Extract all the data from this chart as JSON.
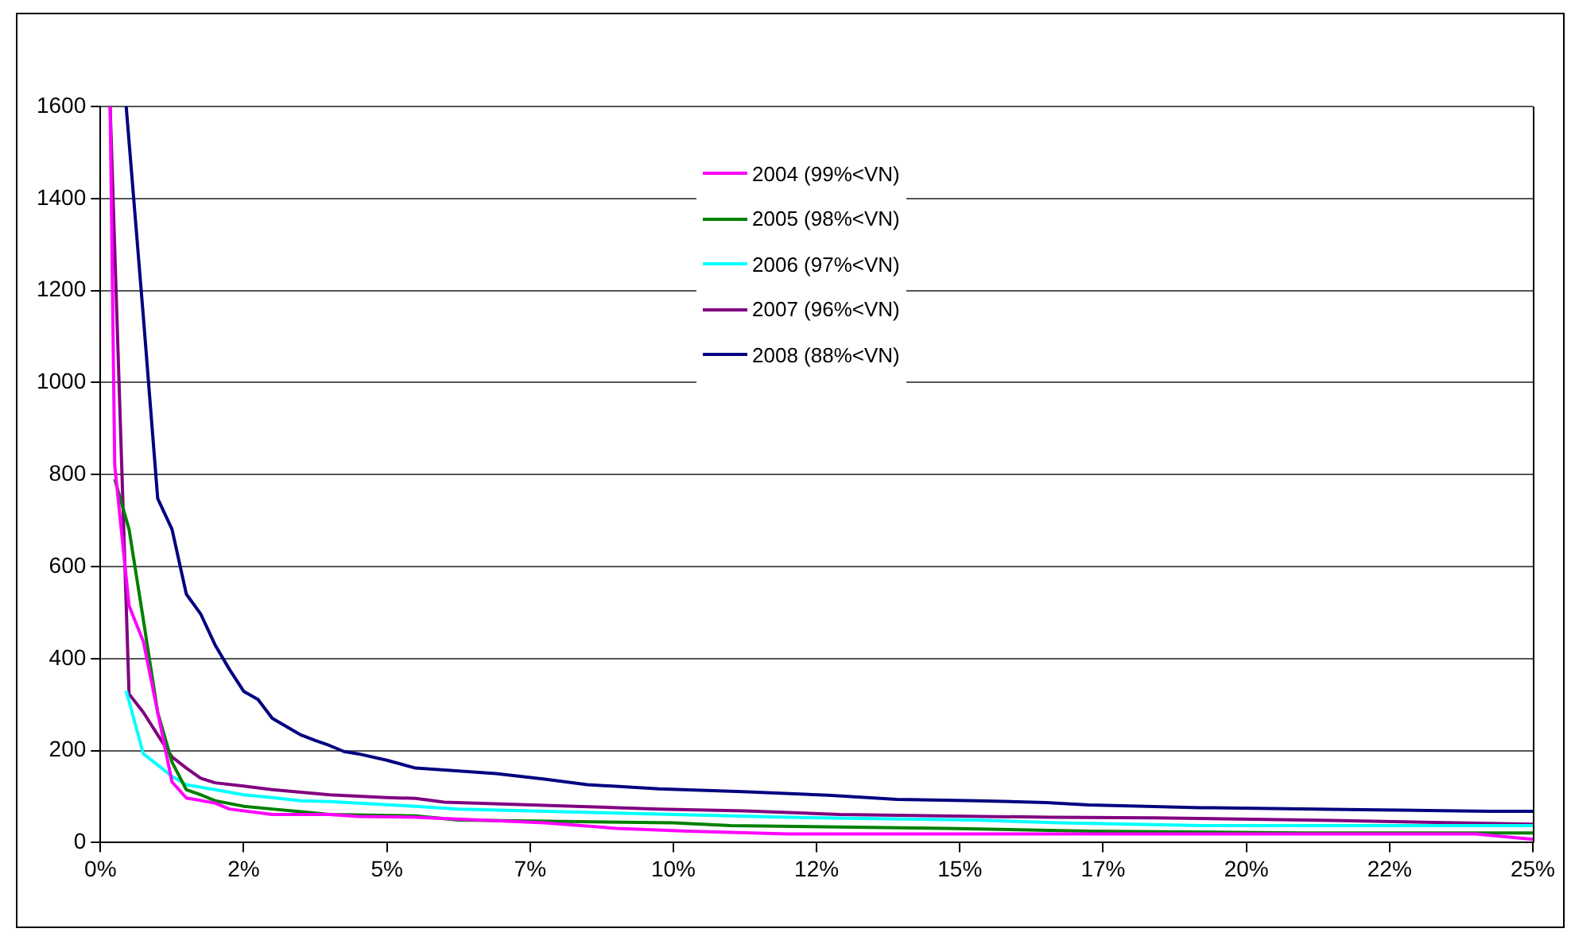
{
  "chart_data": {
    "type": "line",
    "xlim": [
      0,
      25
    ],
    "ylim": [
      0,
      1600
    ],
    "xticks": [
      {
        "value": 0,
        "label": "0%"
      },
      {
        "value": 2.5,
        "label": "2%"
      },
      {
        "value": 5,
        "label": "5%"
      },
      {
        "value": 7.5,
        "label": "7%"
      },
      {
        "value": 10,
        "label": "10%"
      },
      {
        "value": 12.5,
        "label": "12%"
      },
      {
        "value": 15,
        "label": "15%"
      },
      {
        "value": 17.5,
        "label": "17%"
      },
      {
        "value": 20,
        "label": "20%"
      },
      {
        "value": 22.5,
        "label": "22%"
      },
      {
        "value": 25,
        "label": "25%"
      }
    ],
    "yticks": [
      0,
      200,
      400,
      600,
      800,
      1000,
      1200,
      1400,
      1600
    ],
    "grid": "y",
    "legend": "top",
    "marker": "none",
    "line_style": "solid",
    "series": [
      {
        "name": "2004 (99%<VN)",
        "color": "#ff00ff",
        "x": [
          0.17,
          0.25,
          0.5,
          0.75,
          1,
          1.25,
          1.5,
          2,
          2.25,
          3,
          4,
          4.5,
          5.5,
          7.75,
          9,
          10.25,
          12,
          14.5,
          24,
          25
        ],
        "values": [
          1600,
          820,
          515,
          437,
          283,
          132,
          97,
          86,
          73,
          61,
          61,
          57,
          55,
          43,
          31,
          25,
          19,
          19,
          19,
          7
        ]
      },
      {
        "name": "2005 (98%<VN)",
        "color": "#008000",
        "x": [
          0.25,
          0.5,
          0.75,
          1,
          1.25,
          1.5,
          1.75,
          2,
          2.5,
          3,
          3.5,
          4,
          5.5,
          6.25,
          10,
          11,
          14.75,
          17.25,
          21,
          25
        ],
        "values": [
          790,
          681,
          484,
          283,
          175,
          115,
          104,
          91,
          79,
          73,
          67,
          61,
          58,
          49,
          43,
          37,
          31,
          25,
          21,
          21
        ]
      },
      {
        "name": "2006 (97%<VN)",
        "color": "#00ffff",
        "x": [
          0.45,
          0.75,
          1.25,
          1.5,
          2,
          2.5,
          3,
          3.5,
          4,
          5.5,
          6.25,
          9,
          12,
          15.25,
          16.75,
          19.25,
          25
        ],
        "values": [
          330,
          193,
          144,
          126,
          115,
          104,
          98,
          91,
          89,
          79,
          73,
          64,
          55,
          49,
          43,
          37,
          37
        ]
      },
      {
        "name": "2007 (96%<VN)",
        "color": "#800080",
        "x": [
          0.17,
          0.5,
          0.75,
          1,
          1.25,
          1.5,
          1.75,
          2,
          2.5,
          3,
          4,
          5,
          5.5,
          6,
          7.75,
          9.75,
          11.25,
          12.9,
          16.6,
          18.4,
          21.5,
          25
        ],
        "values": [
          1600,
          323,
          283,
          234,
          186,
          162,
          140,
          130,
          123,
          115,
          104,
          98,
          96,
          88,
          81,
          73,
          69,
          61,
          55,
          54,
          48,
          40
        ]
      },
      {
        "name": "2008 (88%<VN)",
        "color": "#000080",
        "x": [
          0.45,
          0.75,
          1,
          1.25,
          1.5,
          1.75,
          2,
          2.25,
          2.5,
          2.75,
          3,
          3.25,
          3.5,
          3.75,
          4,
          4.25,
          4.5,
          5,
          5.5,
          6.9,
          7.75,
          8.5,
          9.75,
          11.2,
          12.7,
          13.9,
          15.3,
          16.5,
          17.25,
          19.2,
          21.75,
          24.25,
          25
        ],
        "values": [
          1600,
          1142,
          748,
          681,
          540,
          497,
          430,
          377,
          329,
          311,
          270,
          252,
          234,
          222,
          211,
          198,
          193,
          179,
          162,
          150,
          138,
          126,
          117,
          111,
          103,
          94,
          91,
          87,
          82,
          76,
          72,
          68,
          68
        ]
      }
    ]
  }
}
